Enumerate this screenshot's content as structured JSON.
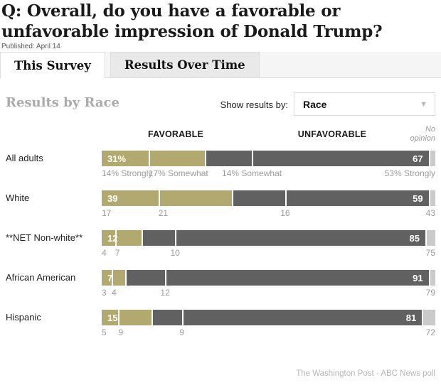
{
  "header": {
    "question": "Q: Overall, do you have a favorable or unfavorable impression of Donald Trump?",
    "published": "Published: April 14"
  },
  "tabs": [
    {
      "label": "This Survey",
      "active": true
    },
    {
      "label": "Results Over Time",
      "active": false
    }
  ],
  "section": {
    "title": "Results by Race",
    "show_results_by_label": "Show results by:",
    "dropdown_value": "Race"
  },
  "chart_data": {
    "type": "bar",
    "orientation": "horizontal",
    "stacked": true,
    "unit": "percent",
    "xlim": [
      0,
      100
    ],
    "column_headers": {
      "favorable": "FAVORABLE",
      "unfavorable": "UNFAVORABLE",
      "no_opinion": "No opinion"
    },
    "colors": {
      "favorable": "#b2a971",
      "unfavorable": "#616161",
      "no_opinion": "#cacaca"
    },
    "rows": [
      {
        "label": "All adults",
        "favorable": {
          "label": "31%",
          "total": 31,
          "strongly": 14,
          "somewhat": 17
        },
        "unfavorable": {
          "label": "67",
          "total": 67,
          "somewhat": 14,
          "strongly": 53
        },
        "no_opinion": 2,
        "sublabels": [
          "14% Strongly",
          "17% Somewhat",
          "14% Somewhat",
          "53% Strongly"
        ]
      },
      {
        "label": "White",
        "favorable": {
          "label": "39",
          "total": 39,
          "strongly": 17,
          "somewhat": 21
        },
        "unfavorable": {
          "label": "59",
          "total": 59,
          "somewhat": 16,
          "strongly": 43
        },
        "no_opinion": 2,
        "sublabels": [
          "17",
          "21",
          "16",
          "43"
        ]
      },
      {
        "label": "**NET Non-white**",
        "favorable": {
          "label": "12",
          "total": 12,
          "strongly": 4,
          "somewhat": 7
        },
        "unfavorable": {
          "label": "85",
          "total": 85,
          "somewhat": 10,
          "strongly": 75
        },
        "no_opinion": 3,
        "sublabels": [
          "4",
          "7",
          "10",
          "75"
        ]
      },
      {
        "label": "African American",
        "favorable": {
          "label": "7",
          "total": 7,
          "strongly": 3,
          "somewhat": 4
        },
        "unfavorable": {
          "label": "91",
          "total": 91,
          "somewhat": 12,
          "strongly": 79
        },
        "no_opinion": 2,
        "sublabels": [
          "3",
          "4",
          "12",
          "79"
        ]
      },
      {
        "label": "Hispanic",
        "favorable": {
          "label": "15",
          "total": 15,
          "strongly": 5,
          "somewhat": 9
        },
        "unfavorable": {
          "label": "81",
          "total": 81,
          "somewhat": 9,
          "strongly": 72
        },
        "no_opinion": 4,
        "sublabels": [
          "5",
          "9",
          "9",
          "72"
        ]
      }
    ]
  },
  "footer": {
    "source": "The Washington Post - ABC News poll"
  }
}
